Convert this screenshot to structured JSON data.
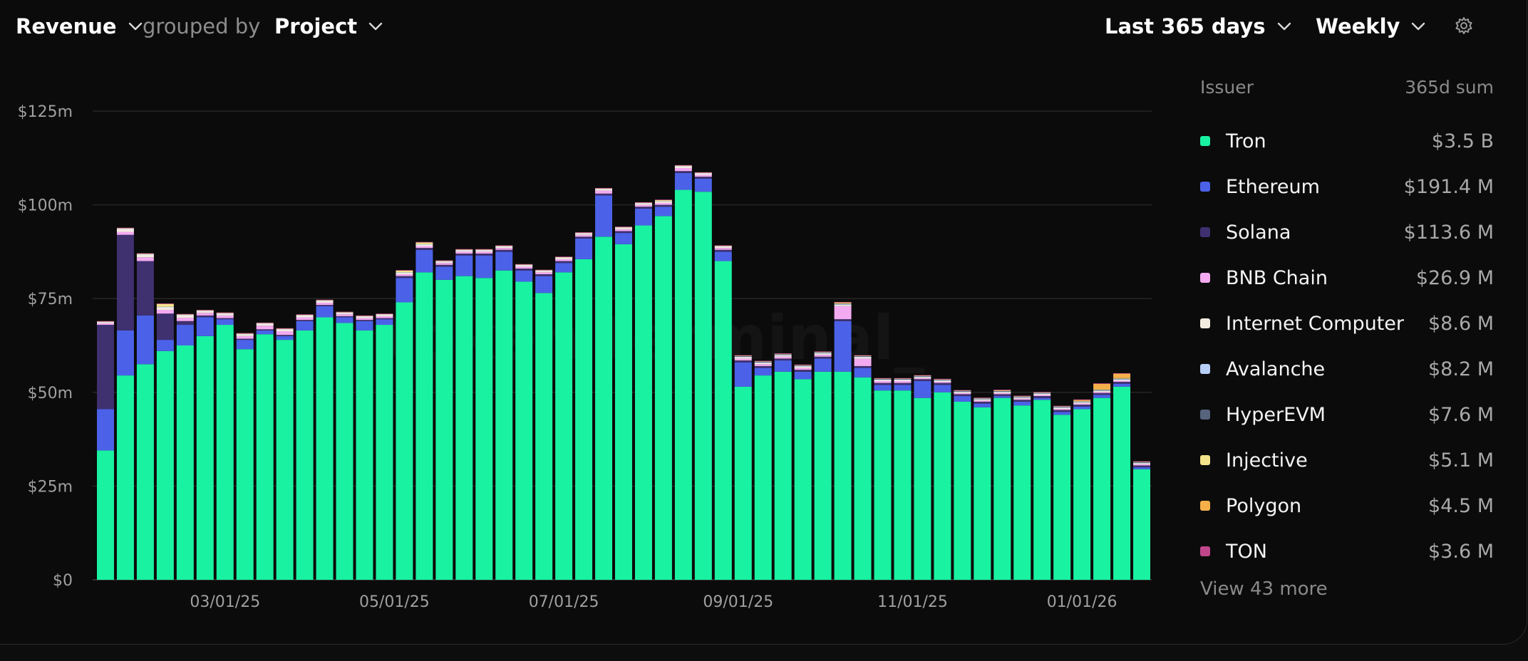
{
  "toolbar": {
    "metric": "Revenue",
    "grouped_by_label": "grouped by",
    "group": "Project",
    "range": "Last 365 days",
    "interval": "Weekly"
  },
  "legend": {
    "header_name": "Issuer",
    "header_value": "365d sum",
    "items": [
      {
        "name": "Tron",
        "value": "$3.5 B",
        "color": "#19f2a1"
      },
      {
        "name": "Ethereum",
        "value": "$191.4 M",
        "color": "#4b62e8"
      },
      {
        "name": "Solana",
        "value": "$113.6 M",
        "color": "#3f3070"
      },
      {
        "name": "BNB Chain",
        "value": "$26.9 M",
        "color": "#f3aaf0"
      },
      {
        "name": "Internet Computer",
        "value": "$8.6 M",
        "color": "#f2ece0"
      },
      {
        "name": "Avalanche",
        "value": "$8.2 M",
        "color": "#b8cff7"
      },
      {
        "name": "HyperEVM",
        "value": "$7.6 M",
        "color": "#56647e"
      },
      {
        "name": "Injective",
        "value": "$5.1 M",
        "color": "#f3e38a"
      },
      {
        "name": "Polygon",
        "value": "$4.5 M",
        "color": "#f6b04a"
      },
      {
        "name": "TON",
        "value": "$3.6 M",
        "color": "#c0468c"
      }
    ],
    "more": "View 43 more"
  },
  "watermark": "token terminal_",
  "chart_data": {
    "type": "bar",
    "stacked": true,
    "x_tick_labels": [
      "03/01/25",
      "05/01/25",
      "07/01/25",
      "09/01/25",
      "11/01/25",
      "01/01/26"
    ],
    "y_tick_labels": [
      "$0",
      "$25m",
      "$50m",
      "$75m",
      "$100m",
      "$125m"
    ],
    "ylim": [
      0,
      125
    ],
    "y_unit": "$m",
    "grid": true,
    "legend_position": "right",
    "x_tick_positions": [
      6,
      14.5,
      23,
      31.75,
      40.5,
      49
    ],
    "series": [
      {
        "name": "Tron",
        "color": "#19f2a1",
        "values": [
          34.5,
          54.5,
          57.5,
          61,
          62.5,
          65,
          68,
          61.5,
          65.5,
          64,
          66.5,
          70,
          68.5,
          66.5,
          68,
          74,
          82,
          80,
          81,
          80.5,
          82.5,
          79.5,
          76.5,
          82,
          85.5,
          91.5,
          89.5,
          94.5,
          97,
          104,
          103.5,
          85,
          51.5,
          54.5,
          55.5,
          53.5,
          55.5,
          55.5,
          54,
          50.5,
          50.5,
          48.5,
          50,
          47.5,
          46,
          48.5,
          46.5,
          48,
          44,
          45.5,
          48.5,
          51.5,
          29.5
        ]
      },
      {
        "name": "Ethereum",
        "color": "#4b62e8",
        "values": [
          11,
          12,
          13,
          3,
          5.5,
          5,
          1.5,
          2.5,
          1,
          1,
          2.5,
          3,
          1.5,
          2.5,
          1.5,
          6.5,
          6,
          3.5,
          5.5,
          6,
          5,
          3,
          4.5,
          2.5,
          5.5,
          11,
          3,
          4.5,
          2.5,
          4.5,
          3.5,
          2.5,
          6.5,
          2,
          3,
          2,
          3.5,
          13.5,
          2.5,
          1.5,
          1.5,
          4.5,
          2,
          1.5,
          1,
          0.5,
          1,
          0.5,
          0.8,
          0.7,
          0.8,
          0.8,
          0.5
        ]
      },
      {
        "name": "Solana",
        "color": "#3f3070",
        "values": [
          22.5,
          25.5,
          14.5,
          7,
          1,
          0.5,
          0.3,
          0.3,
          0.3,
          0.3,
          0.3,
          0.3,
          0.3,
          0.3,
          0.3,
          0.5,
          0.5,
          0.5,
          0.5,
          0.5,
          0.5,
          0.5,
          0.5,
          0.5,
          0.5,
          0.5,
          0.5,
          0.5,
          0.5,
          0.5,
          0.5,
          0.5,
          0.5,
          0.5,
          0.5,
          0.5,
          0.5,
          0.5,
          0.5,
          0.5,
          0.5,
          0.5,
          0.5,
          0.5,
          0.5,
          0.5,
          0.5,
          0.5,
          0.5,
          0.5,
          0.5,
          0.5,
          0.5
        ]
      },
      {
        "name": "BNB Chain",
        "color": "#f3aaf0",
        "values": [
          0.4,
          0.8,
          1,
          1,
          0.9,
          0.7,
          0.7,
          0.7,
          1,
          1,
          0.7,
          0.6,
          0.5,
          0.5,
          0.5,
          0.5,
          0.5,
          0.5,
          0.5,
          0.5,
          0.5,
          0.5,
          0.5,
          0.5,
          0.5,
          0.8,
          0.5,
          0.5,
          0.5,
          0.8,
          0.5,
          0.5,
          0.5,
          0.5,
          0.5,
          0.5,
          0.5,
          3.5,
          2,
          0.5,
          0.5,
          0.3,
          0.3,
          0.3,
          0.3,
          0.3,
          0.3,
          0.3,
          0.3,
          0.3,
          0.3,
          0.3,
          0.3
        ]
      },
      {
        "name": "Internet Computer",
        "color": "#f2ece0",
        "values": [
          0.3,
          0.8,
          0.8,
          0.7,
          0.7,
          0.5,
          0.5,
          0.5,
          0.5,
          0.5,
          0.5,
          0.5,
          0.4,
          0.4,
          0.4,
          0.4,
          0.4,
          0.4,
          0.4,
          0.4,
          0.4,
          0.4,
          0.4,
          0.4,
          0.4,
          0.4,
          0.4,
          0.4,
          0.4,
          0.5,
          0.4,
          0.4,
          0.4,
          0.4,
          0.4,
          0.4,
          0.4,
          0.4,
          0.4,
          0.3,
          0.3,
          0.3,
          0.3,
          0.3,
          0.3,
          0.3,
          0.3,
          0.3,
          0.3,
          0.3,
          0.3,
          0.3,
          0.3
        ]
      },
      {
        "name": "Avalanche",
        "color": "#b8cff7",
        "values": [
          0.1,
          0.1,
          0.1,
          0.1,
          0.1,
          0.1,
          0.1,
          0.1,
          0.1,
          0.1,
          0.1,
          0.1,
          0.1,
          0.1,
          0.1,
          0.1,
          0.1,
          0.1,
          0.1,
          0.1,
          0.1,
          0.1,
          0.1,
          0.1,
          0.1,
          0.1,
          0.1,
          0.1,
          0.1,
          0.1,
          0.1,
          0.1,
          0.1,
          0.1,
          0.1,
          0.1,
          0.1,
          0.1,
          0.1,
          0.1,
          0.1,
          0.1,
          0.1,
          0.1,
          0.1,
          0.1,
          0.1,
          0.1,
          0.1,
          0.1,
          0.1,
          0.1,
          0.1
        ]
      },
      {
        "name": "HyperEVM",
        "color": "#56647e",
        "values": [
          0,
          0,
          0,
          0,
          0,
          0,
          0,
          0,
          0,
          0,
          0,
          0,
          0,
          0,
          0,
          0,
          0,
          0,
          0,
          0,
          0,
          0,
          0,
          0,
          0,
          0,
          0,
          0,
          0,
          0,
          0,
          0,
          0.2,
          0.2,
          0.2,
          0.2,
          0.2,
          0.2,
          0.2,
          0.2,
          0.2,
          0.2,
          0.2,
          0.2,
          0.2,
          0.2,
          0.2,
          0.2,
          0.2,
          0.2,
          0.2,
          0.2,
          0.2
        ]
      },
      {
        "name": "Injective",
        "color": "#f3e38a",
        "values": [
          0.1,
          0.1,
          0.1,
          0.8,
          0.1,
          0.1,
          0.1,
          0.1,
          0.1,
          0.1,
          0.1,
          0.1,
          0.1,
          0.1,
          0.1,
          0.5,
          0.5,
          0.1,
          0.1,
          0.1,
          0.1,
          0.1,
          0.1,
          0.1,
          0.1,
          0.1,
          0.1,
          0.1,
          0.3,
          0.1,
          0.1,
          0.1,
          0.1,
          0.1,
          0.1,
          0.1,
          0.1,
          0.1,
          0.1,
          0.1,
          0.1,
          0.1,
          0.1,
          0.1,
          0.1,
          0.1,
          0.1,
          0.1,
          0.1,
          0.1,
          0.1,
          0.1,
          0.1
        ]
      },
      {
        "name": "Polygon",
        "color": "#f6b04a",
        "values": [
          0,
          0,
          0,
          0,
          0,
          0,
          0,
          0,
          0,
          0,
          0,
          0,
          0,
          0,
          0,
          0,
          0,
          0,
          0,
          0,
          0,
          0,
          0,
          0,
          0,
          0,
          0,
          0,
          0,
          0,
          0,
          0,
          0,
          0,
          0,
          0,
          0,
          0.2,
          0,
          0,
          0,
          0,
          0,
          0,
          0,
          0.1,
          0,
          0,
          0,
          0.3,
          1.5,
          1.2,
          0
        ]
      },
      {
        "name": "TON",
        "color": "#c0468c",
        "values": [
          0.1,
          0.1,
          0.1,
          0.1,
          0.1,
          0.1,
          0.1,
          0.1,
          0.1,
          0.1,
          0.1,
          0.1,
          0.1,
          0.1,
          0.1,
          0.1,
          0.1,
          0.1,
          0.1,
          0.1,
          0.1,
          0.1,
          0.1,
          0.1,
          0.1,
          0.1,
          0.1,
          0.1,
          0.1,
          0.1,
          0.1,
          0.1,
          0.1,
          0.1,
          0.1,
          0.1,
          0.1,
          0.1,
          0.1,
          0.1,
          0.1,
          0.1,
          0.1,
          0.1,
          0.1,
          0.1,
          0.1,
          0.1,
          0.1,
          0.1,
          0.1,
          0.1,
          0.1
        ]
      }
    ]
  }
}
